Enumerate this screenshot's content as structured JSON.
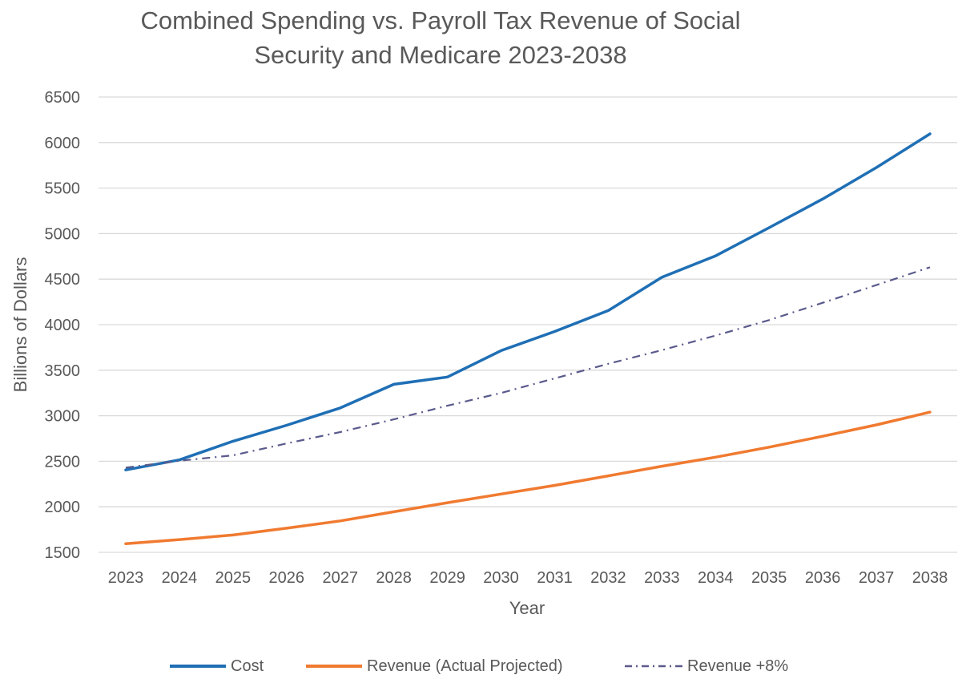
{
  "chart_data": {
    "type": "line",
    "title_line1": "Combined  Spending vs. Payroll Tax Revenue of Social",
    "title_line2": "Security and Medicare 2023-2038",
    "xlabel": "Year",
    "ylabel": "Billions of Dollars",
    "categories": [
      "2023",
      "2024",
      "2025",
      "2026",
      "2027",
      "2028",
      "2029",
      "2030",
      "2031",
      "2032",
      "2033",
      "2034",
      "2035",
      "2036",
      "2037",
      "2038"
    ],
    "ylim": [
      1500,
      6500
    ],
    "yticks": [
      "1500",
      "2000",
      "2500",
      "3000",
      "3500",
      "4000",
      "4500",
      "5000",
      "5500",
      "6000",
      "6500"
    ],
    "grid": true,
    "legend_position": "bottom",
    "series": [
      {
        "name": "Cost",
        "color": "#1f6fb5",
        "style": "solid",
        "values": [
          2405,
          2515,
          2720,
          2895,
          3085,
          3345,
          3425,
          3715,
          3925,
          4155,
          4520,
          4755,
          5065,
          5380,
          5725,
          6095
        ]
      },
      {
        "name": "Revenue (Actual Projected)",
        "color": "#f07a30",
        "style": "solid",
        "values": [
          1595,
          1640,
          1690,
          1765,
          1845,
          1945,
          2045,
          2140,
          2235,
          2340,
          2445,
          2545,
          2655,
          2775,
          2900,
          3040
        ]
      },
      {
        "name": "Revenue +8%",
        "color": "#5a5a8c",
        "style": "dashdot",
        "values": [
          2430,
          2505,
          2565,
          2695,
          2820,
          2960,
          3110,
          3250,
          3410,
          3570,
          3720,
          3880,
          4050,
          4240,
          4435,
          4630
        ]
      }
    ]
  }
}
